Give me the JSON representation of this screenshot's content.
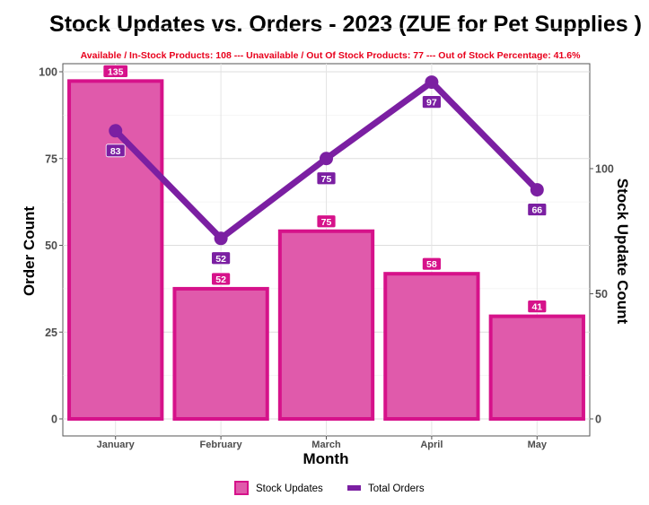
{
  "chart_data": {
    "type": "bar",
    "title": "Stock Updates vs. Orders - 2023 (ZUE for Pet Supplies )",
    "subtitle": "Available / In-Stock Products: 108  ---  Unavailable / Out Of Stock Products: 77  ---  Out of Stock Percentage: 41.6%",
    "xlabel": "Month",
    "ylabel": "Order Count",
    "y2label": "Stock Update Count",
    "categories": [
      "January",
      "February",
      "March",
      "April",
      "May"
    ],
    "series": [
      {
        "name": "Stock Updates",
        "type": "bar",
        "axis": "right",
        "values": [
          135,
          52,
          75,
          58,
          41
        ],
        "color": "#d6128a",
        "fill": "#e05aab"
      },
      {
        "name": "Total Orders",
        "type": "line",
        "axis": "left",
        "values": [
          83,
          52,
          75,
          97,
          66
        ],
        "color": "#7b1fa2"
      }
    ],
    "ylim": [
      0,
      100
    ],
    "y2lim": [
      0,
      160
    ],
    "yticks": [
      "0",
      "25",
      "50",
      "75",
      "100"
    ],
    "y2ticks": [
      "0",
      "50",
      "100"
    ],
    "grid": true,
    "legend_position": "bottom"
  }
}
